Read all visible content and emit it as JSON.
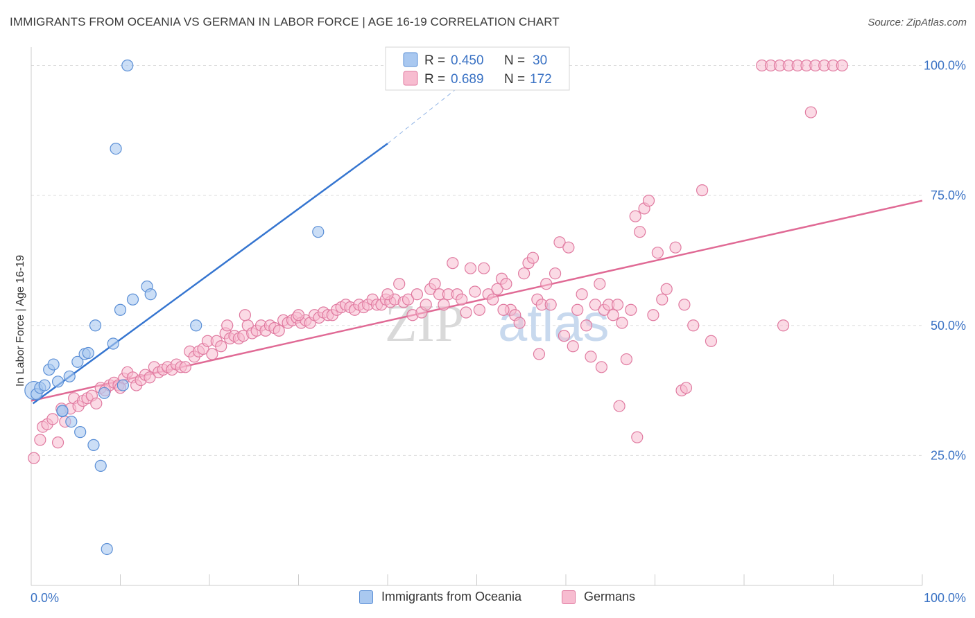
{
  "header": {
    "title": "IMMIGRANTS FROM OCEANIA VS GERMAN IN LABOR FORCE | AGE 16-19 CORRELATION CHART",
    "source": "Source: ZipAtlas.com"
  },
  "watermark": {
    "zip": "ZIP",
    "atlas": "atlas"
  },
  "colors": {
    "oceania_fill": "#a9c8f0",
    "oceania_stroke": "#5b8fd6",
    "oceania_line": "#3575d0",
    "german_fill": "#f7bcd0",
    "german_stroke": "#e07aa0",
    "german_line": "#e06a95",
    "axis_label": "#3a72c4",
    "grid": "#dddddd"
  },
  "stats_legend": {
    "rows": [
      {
        "r_label": "R =",
        "r_value": "0.450",
        "n_label": "N =",
        "n_value": "30"
      },
      {
        "r_label": "R =",
        "r_value": "0.689",
        "n_label": "N =",
        "n_value": "172"
      }
    ]
  },
  "chart_data": {
    "type": "scatter",
    "ylabel": "In Labor Force | Age 16-19",
    "x_range": [
      0,
      100
    ],
    "y_range": [
      0,
      103
    ],
    "x_tick_labels": [
      {
        "value": 0,
        "label": "0.0%"
      },
      {
        "value": 100,
        "label": "100.0%"
      }
    ],
    "y_tick_labels": [
      {
        "value": 25,
        "label": "25.0%"
      },
      {
        "value": 50,
        "label": "50.0%"
      },
      {
        "value": 75,
        "label": "75.0%"
      },
      {
        "value": 100,
        "label": "100.0%"
      }
    ],
    "legend": [
      "Immigrants from Oceania",
      "Germans"
    ],
    "series": [
      {
        "name": "Immigrants from Oceania",
        "points": [
          [
            0.3,
            37.5
          ],
          [
            0.6,
            36.8
          ],
          [
            1.0,
            38.0
          ],
          [
            1.5,
            38.5
          ],
          [
            2.0,
            41.5
          ],
          [
            2.5,
            42.5
          ],
          [
            3.0,
            39.2
          ],
          [
            3.5,
            33.5
          ],
          [
            4.3,
            40.2
          ],
          [
            4.5,
            31.5
          ],
          [
            5.2,
            43.0
          ],
          [
            5.5,
            29.5
          ],
          [
            6.0,
            44.5
          ],
          [
            6.4,
            44.7
          ],
          [
            7.0,
            27.0
          ],
          [
            7.2,
            50.0
          ],
          [
            7.8,
            23.0
          ],
          [
            8.2,
            37.0
          ],
          [
            8.5,
            7.0
          ],
          [
            9.2,
            46.5
          ],
          [
            9.5,
            84.0
          ],
          [
            10.0,
            53.0
          ],
          [
            10.3,
            38.5
          ],
          [
            10.8,
            100.0
          ],
          [
            11.4,
            55.0
          ],
          [
            13.0,
            57.5
          ],
          [
            13.4,
            56.0
          ],
          [
            18.5,
            50.0
          ],
          [
            32.2,
            68.0
          ],
          [
            3.5,
            33.6
          ]
        ],
        "trend": {
          "x": [
            0.2,
            40.0
          ],
          "y": [
            35.0,
            85.0
          ],
          "dashed_to": {
            "x": 51.0,
            "y": 100.0
          }
        }
      },
      {
        "name": "Germans",
        "points": [
          [
            0.3,
            24.5
          ],
          [
            1.0,
            28.0
          ],
          [
            1.3,
            30.5
          ],
          [
            1.8,
            31.0
          ],
          [
            2.4,
            32.0
          ],
          [
            3.0,
            27.5
          ],
          [
            3.4,
            34.0
          ],
          [
            3.8,
            31.5
          ],
          [
            4.4,
            34.0
          ],
          [
            4.8,
            36.0
          ],
          [
            5.3,
            34.5
          ],
          [
            5.8,
            35.5
          ],
          [
            6.3,
            36.0
          ],
          [
            6.8,
            36.5
          ],
          [
            7.3,
            35.0
          ],
          [
            7.8,
            38.0
          ],
          [
            8.3,
            37.5
          ],
          [
            8.8,
            38.5
          ],
          [
            9.3,
            39.0
          ],
          [
            9.8,
            38.5
          ],
          [
            10.4,
            39.8
          ],
          [
            10.8,
            41.0
          ],
          [
            11.4,
            40.0
          ],
          [
            11.8,
            38.5
          ],
          [
            12.3,
            39.5
          ],
          [
            12.8,
            40.5
          ],
          [
            13.3,
            40.0
          ],
          [
            13.8,
            42.0
          ],
          [
            14.3,
            41.0
          ],
          [
            14.8,
            41.5
          ],
          [
            15.3,
            42.0
          ],
          [
            15.8,
            41.5
          ],
          [
            16.3,
            42.5
          ],
          [
            16.8,
            42.0
          ],
          [
            17.3,
            42.0
          ],
          [
            17.8,
            45.0
          ],
          [
            18.3,
            44.0
          ],
          [
            18.8,
            45.0
          ],
          [
            19.3,
            45.5
          ],
          [
            19.8,
            47.0
          ],
          [
            20.3,
            44.5
          ],
          [
            20.8,
            47.0
          ],
          [
            21.3,
            46.0
          ],
          [
            21.8,
            48.5
          ],
          [
            22.3,
            47.5
          ],
          [
            22.8,
            48.0
          ],
          [
            23.3,
            47.5
          ],
          [
            23.8,
            48.0
          ],
          [
            24.3,
            50.0
          ],
          [
            24.8,
            48.5
          ],
          [
            25.3,
            49.0
          ],
          [
            25.8,
            50.0
          ],
          [
            26.3,
            49.0
          ],
          [
            26.8,
            50.0
          ],
          [
            27.3,
            49.5
          ],
          [
            27.8,
            49.0
          ],
          [
            28.3,
            51.0
          ],
          [
            28.8,
            50.5
          ],
          [
            29.3,
            51.0
          ],
          [
            29.8,
            51.5
          ],
          [
            30.3,
            50.5
          ],
          [
            30.8,
            51.0
          ],
          [
            31.3,
            50.5
          ],
          [
            31.8,
            52.0
          ],
          [
            32.3,
            51.5
          ],
          [
            32.8,
            52.5
          ],
          [
            33.3,
            52.0
          ],
          [
            33.8,
            52.0
          ],
          [
            34.3,
            53.0
          ],
          [
            34.8,
            53.5
          ],
          [
            35.3,
            54.0
          ],
          [
            35.8,
            53.5
          ],
          [
            36.3,
            53.0
          ],
          [
            36.8,
            54.0
          ],
          [
            37.3,
            53.5
          ],
          [
            37.8,
            54.0
          ],
          [
            38.3,
            55.0
          ],
          [
            38.8,
            54.0
          ],
          [
            39.3,
            54.0
          ],
          [
            39.8,
            55.0
          ],
          [
            40.3,
            54.5
          ],
          [
            40.8,
            55.0
          ],
          [
            41.3,
            58.0
          ],
          [
            41.8,
            54.5
          ],
          [
            42.3,
            55.0
          ],
          [
            42.8,
            52.0
          ],
          [
            43.3,
            56.0
          ],
          [
            43.8,
            52.5
          ],
          [
            44.3,
            54.0
          ],
          [
            44.8,
            57.0
          ],
          [
            45.3,
            58.0
          ],
          [
            45.8,
            56.0
          ],
          [
            46.3,
            54.0
          ],
          [
            46.8,
            56.0
          ],
          [
            47.3,
            62.0
          ],
          [
            47.8,
            56.0
          ],
          [
            48.3,
            55.0
          ],
          [
            48.8,
            52.5
          ],
          [
            49.3,
            61.0
          ],
          [
            49.8,
            56.5
          ],
          [
            50.3,
            53.0
          ],
          [
            50.8,
            61.0
          ],
          [
            51.3,
            56.0
          ],
          [
            51.8,
            55.0
          ],
          [
            52.3,
            57.0
          ],
          [
            52.8,
            59.0
          ],
          [
            53.3,
            58.0
          ],
          [
            53.8,
            53.0
          ],
          [
            54.3,
            52.0
          ],
          [
            54.8,
            50.5
          ],
          [
            55.3,
            60.0
          ],
          [
            55.8,
            62.0
          ],
          [
            56.3,
            63.0
          ],
          [
            56.8,
            55.0
          ],
          [
            57.3,
            54.0
          ],
          [
            57.8,
            58.0
          ],
          [
            58.3,
            54.0
          ],
          [
            58.8,
            60.0
          ],
          [
            59.3,
            66.0
          ],
          [
            59.8,
            48.0
          ],
          [
            60.3,
            65.0
          ],
          [
            60.8,
            46.0
          ],
          [
            61.3,
            53.0
          ],
          [
            61.8,
            56.0
          ],
          [
            62.3,
            50.0
          ],
          [
            62.8,
            44.0
          ],
          [
            63.3,
            54.0
          ],
          [
            63.8,
            58.0
          ],
          [
            64.3,
            53.0
          ],
          [
            64.8,
            54.0
          ],
          [
            65.3,
            52.0
          ],
          [
            65.8,
            54.0
          ],
          [
            66.3,
            50.5
          ],
          [
            66.8,
            43.5
          ],
          [
            67.3,
            53.0
          ],
          [
            67.8,
            71.0
          ],
          [
            68.3,
            68.0
          ],
          [
            68.8,
            72.5
          ],
          [
            69.3,
            74.0
          ],
          [
            69.8,
            52.0
          ],
          [
            70.3,
            64.0
          ],
          [
            70.8,
            55.0
          ],
          [
            71.3,
            57.0
          ],
          [
            72.3,
            65.0
          ],
          [
            73.3,
            54.0
          ],
          [
            74.3,
            50.0
          ],
          [
            75.3,
            76.0
          ],
          [
            76.3,
            47.0
          ],
          [
            84.4,
            50.0
          ],
          [
            87.5,
            91.0
          ],
          [
            82.0,
            100.0
          ],
          [
            83.0,
            100.0
          ],
          [
            84.0,
            100.0
          ],
          [
            85.0,
            100.0
          ],
          [
            86.0,
            100.0
          ],
          [
            87.0,
            100.0
          ],
          [
            88.0,
            100.0
          ],
          [
            89.0,
            100.0
          ],
          [
            90.0,
            100.0
          ],
          [
            91.0,
            100.0
          ],
          [
            24.0,
            52.0
          ],
          [
            40.0,
            56.0
          ],
          [
            53.0,
            53.0
          ],
          [
            57.0,
            44.5
          ],
          [
            64.0,
            42.0
          ],
          [
            68.0,
            28.5
          ],
          [
            73.0,
            37.5
          ],
          [
            73.5,
            38.0
          ],
          [
            66.0,
            34.5
          ],
          [
            22.0,
            50.0
          ],
          [
            10.0,
            38.0
          ],
          [
            30.0,
            52.0
          ]
        ],
        "trend": {
          "x": [
            0.0,
            100.0
          ],
          "y": [
            35.5,
            74.0
          ]
        }
      }
    ]
  }
}
